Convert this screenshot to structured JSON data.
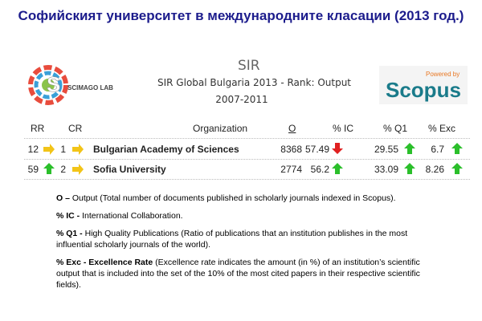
{
  "header": {
    "title": "Софийският университет в международните класации (2013 год.)"
  },
  "logos": {
    "scimago": "SCIMAGO",
    "scimago_lab": "LAB",
    "sir": "SIR",
    "sir_title": "SIR Global Bulgaria 2013 - Rank: Output",
    "sir_period": "2007-2011",
    "scopus_powered": "Powered by",
    "scopus": "Scopus"
  },
  "table": {
    "columns": [
      "RR",
      "CR",
      "Organization",
      "O",
      "% IC",
      "% Q1",
      "% Exc"
    ],
    "rows": [
      [
        12,
        1,
        "Bulgarian Academy of Sciences",
        8368,
        57.49,
        29.55,
        6.7
      ],
      [
        59,
        2,
        "Sofia University",
        2774,
        56.2,
        33.09,
        8.26
      ]
    ]
  },
  "notes": [
    {
      "term": "O –",
      "text": " Output (Total number of documents published in scholarly journals indexed in Scopus)."
    },
    {
      "term": "% IC -",
      "text": " International Collaboration."
    },
    {
      "term": "% Q1 -",
      "text": " High Quality Publications (Ratio of publications that an institution publishes in the most influential scholarly journals of the world)."
    },
    {
      "term": "% Exc - Excellence Rate",
      "text": " (Excellence rate indicates the amount (in %) of an institution’s scientific output  that is included into the set of the 10% of the most cited papers in their respective scientific fields)."
    }
  ]
}
